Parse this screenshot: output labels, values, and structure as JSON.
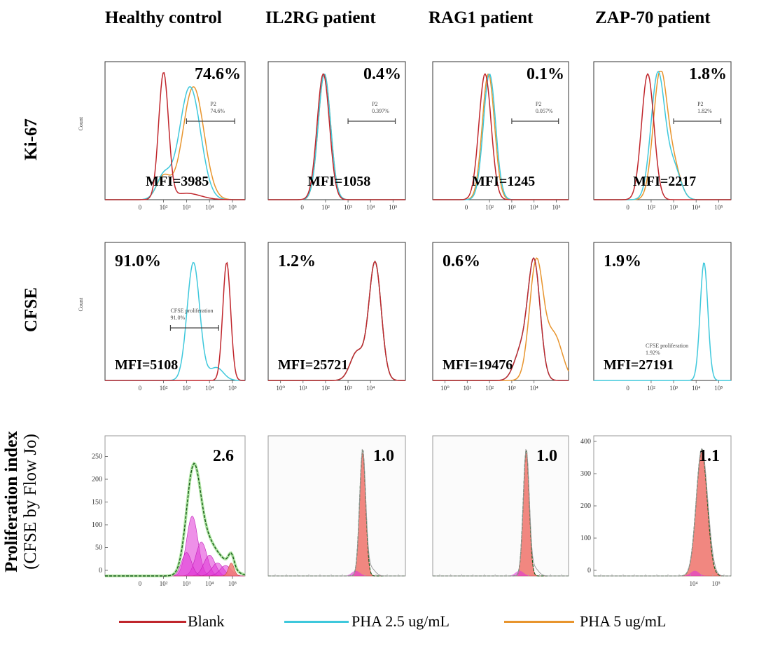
{
  "columns": [
    {
      "title": "Healthy control"
    },
    {
      "title": "IL2RG patient"
    },
    {
      "title": "RAG1 patient"
    },
    {
      "title": "ZAP-70 patient"
    }
  ],
  "rows": [
    {
      "label": "Ki-67"
    },
    {
      "label": "CFSE"
    },
    {
      "label": "Proliferation index",
      "sublabel": "(CFSE by Flow Jo)"
    }
  ],
  "legend": [
    {
      "name": "Blank",
      "color": "#c0262c"
    },
    {
      "name": "PHA 2.5 ug/mL",
      "color": "#3ec8dc"
    },
    {
      "name": "PHA 5 ug/mL",
      "color": "#e8952e"
    }
  ],
  "axis_text": {
    "count": "Count",
    "zero": "0",
    "ticks": [
      "10²",
      "10³",
      "10⁴",
      "10⁵"
    ],
    "ticks_cfse_patient": [
      "10⁰",
      "10¹",
      "10²",
      "10³",
      "10⁴"
    ]
  },
  "chart_data": [
    {
      "type": "histogram",
      "row": "Ki-67",
      "column": "Healthy control",
      "percent": "74.6%",
      "mfi": "MFI=3985",
      "gate_label": "P2",
      "gate_value": "74.6%",
      "peaks_log10": {
        "Blank": 2.0,
        "PHA 2.5 ug/mL": 3.15,
        "PHA 5 ug/mL": 3.3
      }
    },
    {
      "type": "histogram",
      "row": "Ki-67",
      "column": "IL2RG patient",
      "percent": "0.4%",
      "mfi": "MFI=1058",
      "gate_label": "P2",
      "gate_value": "0.397%",
      "peaks_log10": {
        "Blank": 1.9,
        "PHA 2.5 ug/mL": 1.95,
        "PHA 5 ug/mL": 1.95
      }
    },
    {
      "type": "histogram",
      "row": "Ki-67",
      "column": "RAG1 patient",
      "percent": "0.1%",
      "mfi": "MFI=1245",
      "gate_label": "P2",
      "gate_value": "0.057%",
      "peaks_log10": {
        "Blank": 1.8,
        "PHA 2.5 ug/mL": 2.0,
        "PHA 5 ug/mL": 1.95
      }
    },
    {
      "type": "histogram",
      "row": "Ki-67",
      "column": "ZAP-70 patient",
      "percent": "1.8%",
      "mfi": "MFI=2217",
      "gate_label": "P2",
      "gate_value": "1.82%",
      "peaks_log10": {
        "Blank": 1.85,
        "PHA 2.5 ug/mL": 2.3,
        "PHA 5 ug/mL": 2.4
      }
    },
    {
      "type": "histogram",
      "row": "CFSE",
      "column": "Healthy control",
      "percent": "91.0%",
      "mfi": "MFI=5108",
      "gate_label": "CFSE proliferation",
      "gate_value": "91.0%",
      "peaks_log10": {
        "Blank": 4.75,
        "PHA 2.5 ug/mL": 3.3
      }
    },
    {
      "type": "histogram",
      "row": "CFSE",
      "column": "IL2RG patient",
      "percent": "1.2%",
      "mfi": "MFI=25721",
      "peaks_log10": {
        "Blank": 4.2,
        "PHA 2.5 ug/mL": 4.2,
        "PHA 5 ug/mL": 4.2
      }
    },
    {
      "type": "histogram",
      "row": "CFSE",
      "column": "RAG1 patient",
      "percent": "0.6%",
      "mfi": "MFI=19476",
      "peaks_log10": {
        "Blank": 4.0,
        "PHA 2.5 ug/mL": 4.0,
        "PHA 5 ug/mL": 4.1
      }
    },
    {
      "type": "histogram",
      "row": "CFSE",
      "column": "ZAP-70 patient",
      "percent": "1.9%",
      "mfi": "MFI=27191",
      "gate_label": "CFSE proliferation",
      "gate_value": "1.92%",
      "peaks_log10": {
        "PHA 2.5 ug/mL": 4.35
      }
    },
    {
      "type": "histogram",
      "row": "Proliferation index",
      "column": "Healthy control",
      "proliferation_index": "2.6",
      "y_ticks": [
        "0",
        "50",
        "100",
        "150",
        "200",
        "250"
      ]
    },
    {
      "type": "histogram",
      "row": "Proliferation index",
      "column": "IL2RG patient",
      "proliferation_index": "1.0"
    },
    {
      "type": "histogram",
      "row": "Proliferation index",
      "column": "RAG1 patient",
      "proliferation_index": "1.0"
    },
    {
      "type": "histogram",
      "row": "Proliferation index",
      "column": "ZAP-70 patient",
      "proliferation_index": "1.1",
      "y_ticks": [
        "0",
        "100",
        "200",
        "300",
        "400"
      ]
    }
  ]
}
